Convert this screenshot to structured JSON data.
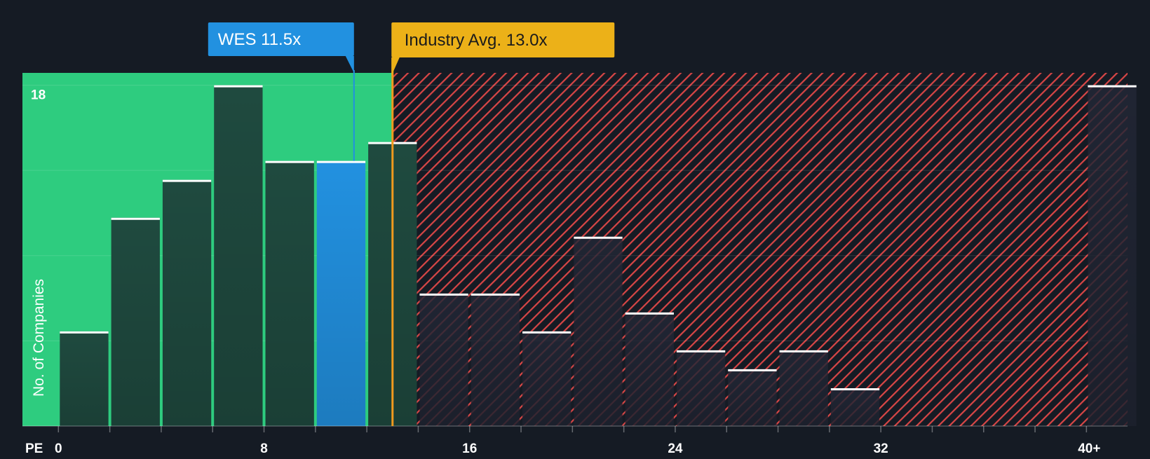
{
  "colors": {
    "background": "#151b24",
    "fair_zone": "#2ecc7f",
    "bar_dark": "#1f4a3f",
    "bar_highlight": "#2291e0",
    "overvalued_hatch": "#d84646",
    "overvalued_bar": "#232837",
    "bar_cap": "#ffffff",
    "company_label_bg": "#2291e0",
    "industry_label_bg": "#ecb118",
    "industry_line": "#f09a1e",
    "axis_text": "#ffffff",
    "ylabel_text": "#ffffff"
  },
  "chart_data": {
    "type": "bar",
    "title": "",
    "xlabel": "PE",
    "ylabel": "No. of Companies",
    "bin_width": 2,
    "xlim": [
      -1.4,
      41.6
    ],
    "ylim": [
      0,
      18.65
    ],
    "x_ticks": [
      0,
      2,
      4,
      6,
      8,
      10,
      12,
      14,
      16,
      18,
      20,
      22,
      24,
      26,
      28,
      30,
      32,
      34,
      36,
      38,
      40
    ],
    "x_tick_labels": [
      {
        "value": 0,
        "label": "0"
      },
      {
        "value": 8,
        "label": "8"
      },
      {
        "value": 16,
        "label": "16"
      },
      {
        "value": 24,
        "label": "24"
      },
      {
        "value": 32,
        "label": "32"
      },
      {
        "value": 40,
        "label": "40+"
      }
    ],
    "y_gridlines": [
      4.5,
      9,
      13.5,
      18
    ],
    "y_tick_labels": [
      {
        "value": 18,
        "label": "18"
      }
    ],
    "bins": [
      {
        "start": 0,
        "value": 5
      },
      {
        "start": 2,
        "value": 11
      },
      {
        "start": 4,
        "value": 13
      },
      {
        "start": 6,
        "value": 18
      },
      {
        "start": 8,
        "value": 14
      },
      {
        "start": 10,
        "value": 14,
        "highlight": true
      },
      {
        "start": 12,
        "value": 15
      },
      {
        "start": 14,
        "value": 7
      },
      {
        "start": 16,
        "value": 7
      },
      {
        "start": 18,
        "value": 5
      },
      {
        "start": 20,
        "value": 10
      },
      {
        "start": 22,
        "value": 6
      },
      {
        "start": 24,
        "value": 4
      },
      {
        "start": 26,
        "value": 3
      },
      {
        "start": 28,
        "value": 4
      },
      {
        "start": 30,
        "value": 2
      },
      {
        "start": 32,
        "value": 0
      },
      {
        "start": 34,
        "value": 0
      },
      {
        "start": 36,
        "value": 0
      },
      {
        "start": 38,
        "value": 0
      },
      {
        "start": 40,
        "value": 18
      }
    ],
    "company": {
      "ticker": "WES",
      "pe": 11.5,
      "label": "WES 11.5x"
    },
    "industry": {
      "pe": 13.0,
      "label": "Industry Avg. 13.0x"
    },
    "fair_zone_end": 13.0
  }
}
